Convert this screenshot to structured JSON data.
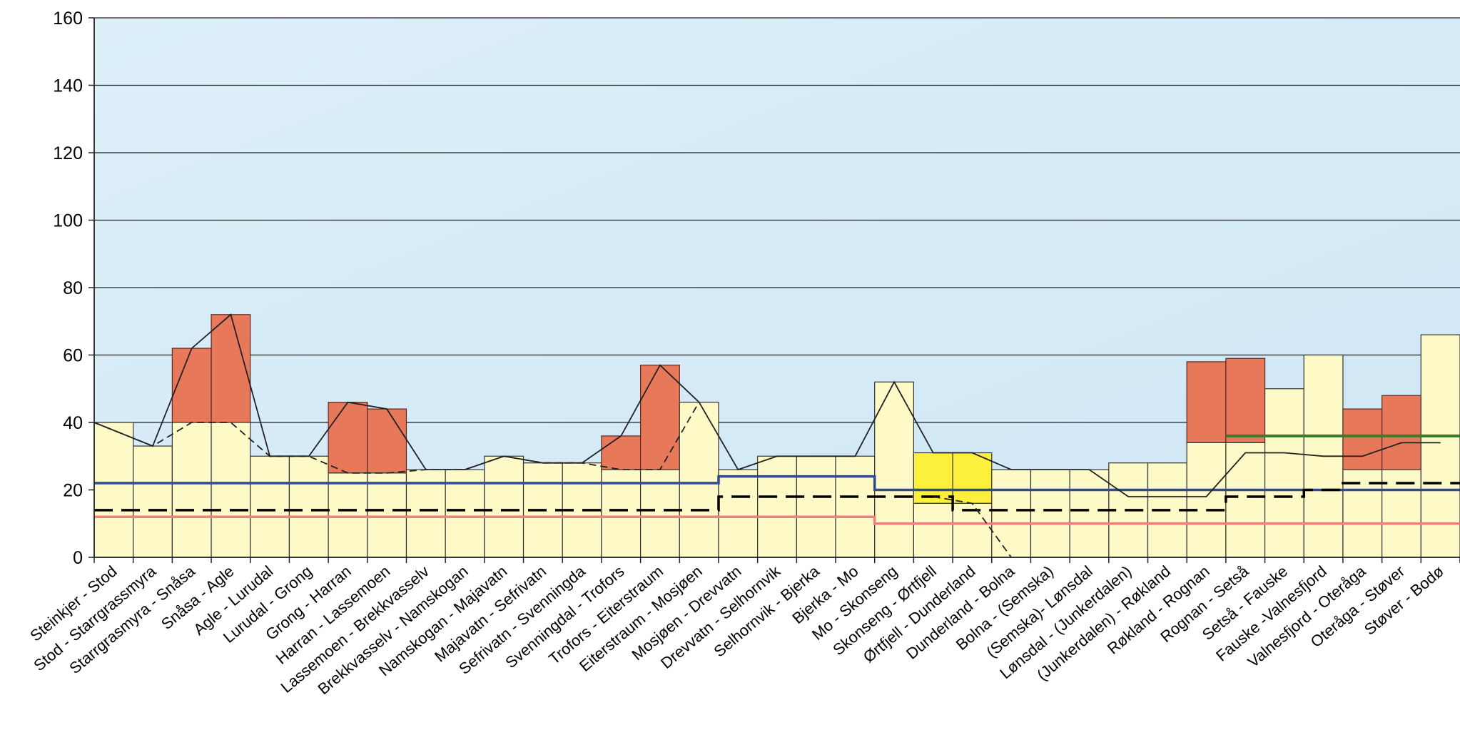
{
  "chart_data": {
    "type": "bar",
    "title": "",
    "xlabel": "",
    "ylabel": "",
    "ylim": [
      0,
      160
    ],
    "y_ticks": [
      0,
      20,
      40,
      60,
      80,
      100,
      120,
      140,
      160
    ],
    "grid": true,
    "legend": "none",
    "categories": [
      "Steinkjer - Stod",
      "Stod - Starrgrassmyra",
      "Starrgrasmyra - Snåsa",
      "Snåsa - Agle",
      "Agle - Lurudal",
      "Lurudal - Grong",
      "Grong - Harran",
      "Harran - Lassemoen",
      "Lassemoen - Brekkvasselv",
      "Brekkvasselv - Namskogan",
      "Namskogan - Majavatn",
      "Majavatn - Sefrivatn",
      "Sefrivatn - Svenningda",
      "Svenningdal - Trofors",
      "Trofors - Eiterstraum",
      "Eiterstraum - Mosjøen",
      "Mosjøen - Drevvatn",
      "Drevvatn - Selhornvik",
      "Selhornvik - Bjerka",
      "Bjerka - Mo",
      "Mo - Skonseng",
      "Skonseng - Ørtfjell",
      "Ørtfjell - Dunderland",
      "Dunderland - Bolna",
      "Bolna - (Semska)",
      "(Semska)- Lønsdal",
      "Lønsdal - (Junkerdalen)",
      "(Junkerdalen) - Røkland",
      "Røkland - Rognan",
      "Rognan - Setså",
      "Setså - Fauske",
      "Fauske -Valnesfjord",
      "Valnesfjord - Oteråga",
      "Oteråga - Støver",
      "Støver - Bodø"
    ],
    "series": [
      {
        "role": "base_bar",
        "color": "#FEFAC8",
        "values": [
          40,
          33,
          40,
          40,
          30,
          30,
          25,
          25,
          26,
          26,
          30,
          28,
          28,
          26,
          26,
          46,
          26,
          30,
          30,
          30,
          52,
          16,
          16,
          26,
          26,
          26,
          28,
          28,
          34,
          34,
          50,
          60,
          26,
          26,
          66
        ]
      },
      {
        "role": "stacked_bar_top",
        "color": "#E8785A",
        "values": [
          40,
          33,
          62,
          72,
          30,
          30,
          46,
          44,
          26,
          26,
          30,
          28,
          28,
          36,
          57,
          46,
          26,
          30,
          30,
          30,
          52,
          16,
          16,
          26,
          26,
          26,
          28,
          28,
          58,
          59,
          50,
          60,
          44,
          48,
          66
        ]
      },
      {
        "role": "highlight_bar",
        "color": "#FDF03C",
        "values": [
          0,
          0,
          0,
          0,
          0,
          0,
          0,
          0,
          0,
          0,
          0,
          0,
          0,
          0,
          0,
          0,
          0,
          0,
          0,
          0,
          0,
          31,
          31,
          0,
          0,
          0,
          0,
          0,
          0,
          0,
          0,
          0,
          0,
          0,
          0
        ]
      },
      {
        "role": "thin_line",
        "color": "#222222",
        "values": [
          40,
          33,
          62,
          72,
          30,
          30,
          46,
          44,
          26,
          26,
          30,
          28,
          28,
          36,
          57,
          46,
          26,
          30,
          30,
          30,
          52,
          31,
          31,
          26,
          26,
          26,
          18,
          18,
          18,
          31,
          31,
          30,
          30,
          34,
          34
        ]
      },
      {
        "role": "thin_dashed_line",
        "color": "#222222",
        "values": [
          40,
          33,
          40,
          40,
          30,
          30,
          25,
          25,
          26,
          26,
          30,
          28,
          28,
          26,
          26,
          46,
          null,
          null,
          null,
          null,
          null,
          18,
          16,
          0,
          null,
          null,
          null,
          null,
          null,
          null,
          null,
          null,
          null,
          null,
          null
        ]
      },
      {
        "role": "blue_line",
        "color": "#2E4B8E",
        "values": [
          22,
          22,
          22,
          22,
          22,
          22,
          22,
          22,
          22,
          22,
          22,
          22,
          22,
          22,
          22,
          22,
          24,
          24,
          24,
          24,
          20,
          20,
          20,
          20,
          20,
          20,
          20,
          20,
          20,
          20,
          20,
          20,
          20,
          20,
          20
        ]
      },
      {
        "role": "black_dashed_line",
        "color": "#000000",
        "values": [
          14,
          14,
          14,
          14,
          14,
          14,
          14,
          14,
          14,
          14,
          14,
          14,
          14,
          14,
          14,
          14,
          18,
          18,
          18,
          18,
          18,
          18,
          14,
          14,
          14,
          14,
          14,
          14,
          14,
          18,
          18,
          20,
          22,
          22,
          22
        ]
      },
      {
        "role": "red_line",
        "color": "#F08080",
        "values": [
          12,
          12,
          12,
          12,
          12,
          12,
          12,
          12,
          12,
          12,
          12,
          12,
          12,
          12,
          12,
          12,
          12,
          12,
          12,
          12,
          10,
          10,
          10,
          10,
          10,
          10,
          10,
          10,
          10,
          10,
          10,
          10,
          10,
          10,
          10
        ]
      },
      {
        "role": "green_line",
        "color": "#3A7A28",
        "values": [
          null,
          null,
          null,
          null,
          null,
          null,
          null,
          null,
          null,
          null,
          null,
          null,
          null,
          null,
          null,
          null,
          null,
          null,
          null,
          null,
          null,
          null,
          null,
          null,
          null,
          null,
          null,
          null,
          null,
          36,
          36,
          36,
          36,
          36,
          36
        ]
      }
    ]
  }
}
